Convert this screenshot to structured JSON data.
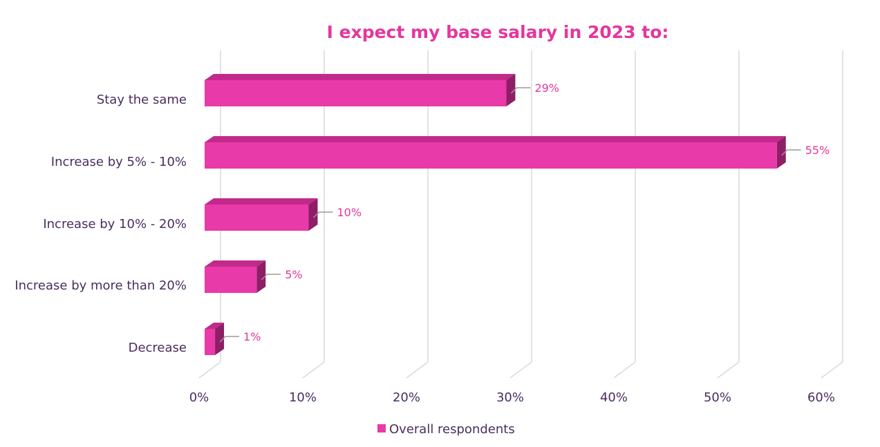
{
  "chart_data": {
    "type": "bar",
    "orientation": "horizontal",
    "title": "I expect my base salary in 2023 to:",
    "categories": [
      "Stay the same",
      "Increase by 5% - 10%",
      "Increase by 10% - 20%",
      "Increase by more than 20%",
      "Decrease"
    ],
    "series": [
      {
        "name": "Overall respondents",
        "values": [
          29,
          55,
          10,
          5,
          1
        ],
        "data_labels": [
          "29%",
          "55%",
          "10%",
          "5%",
          "1%"
        ]
      }
    ],
    "xlim": [
      0,
      60
    ],
    "x_ticks": [
      0,
      10,
      20,
      30,
      40,
      50,
      60
    ],
    "x_tick_labels": [
      "0%",
      "10%",
      "20%",
      "30%",
      "40%",
      "50%",
      "60%"
    ],
    "grid": true,
    "legend_position": "bottom",
    "style": "3d"
  },
  "colors": {
    "title": "#e4369f",
    "bar_front": "#e83aa8",
    "bar_top": "#c12a8a",
    "bar_side": "#8e1e66",
    "data_label": "#e4369f",
    "axis_text": "#4a2d5f",
    "grid": "#d9d9d9",
    "leader": "#9a9a9a"
  }
}
